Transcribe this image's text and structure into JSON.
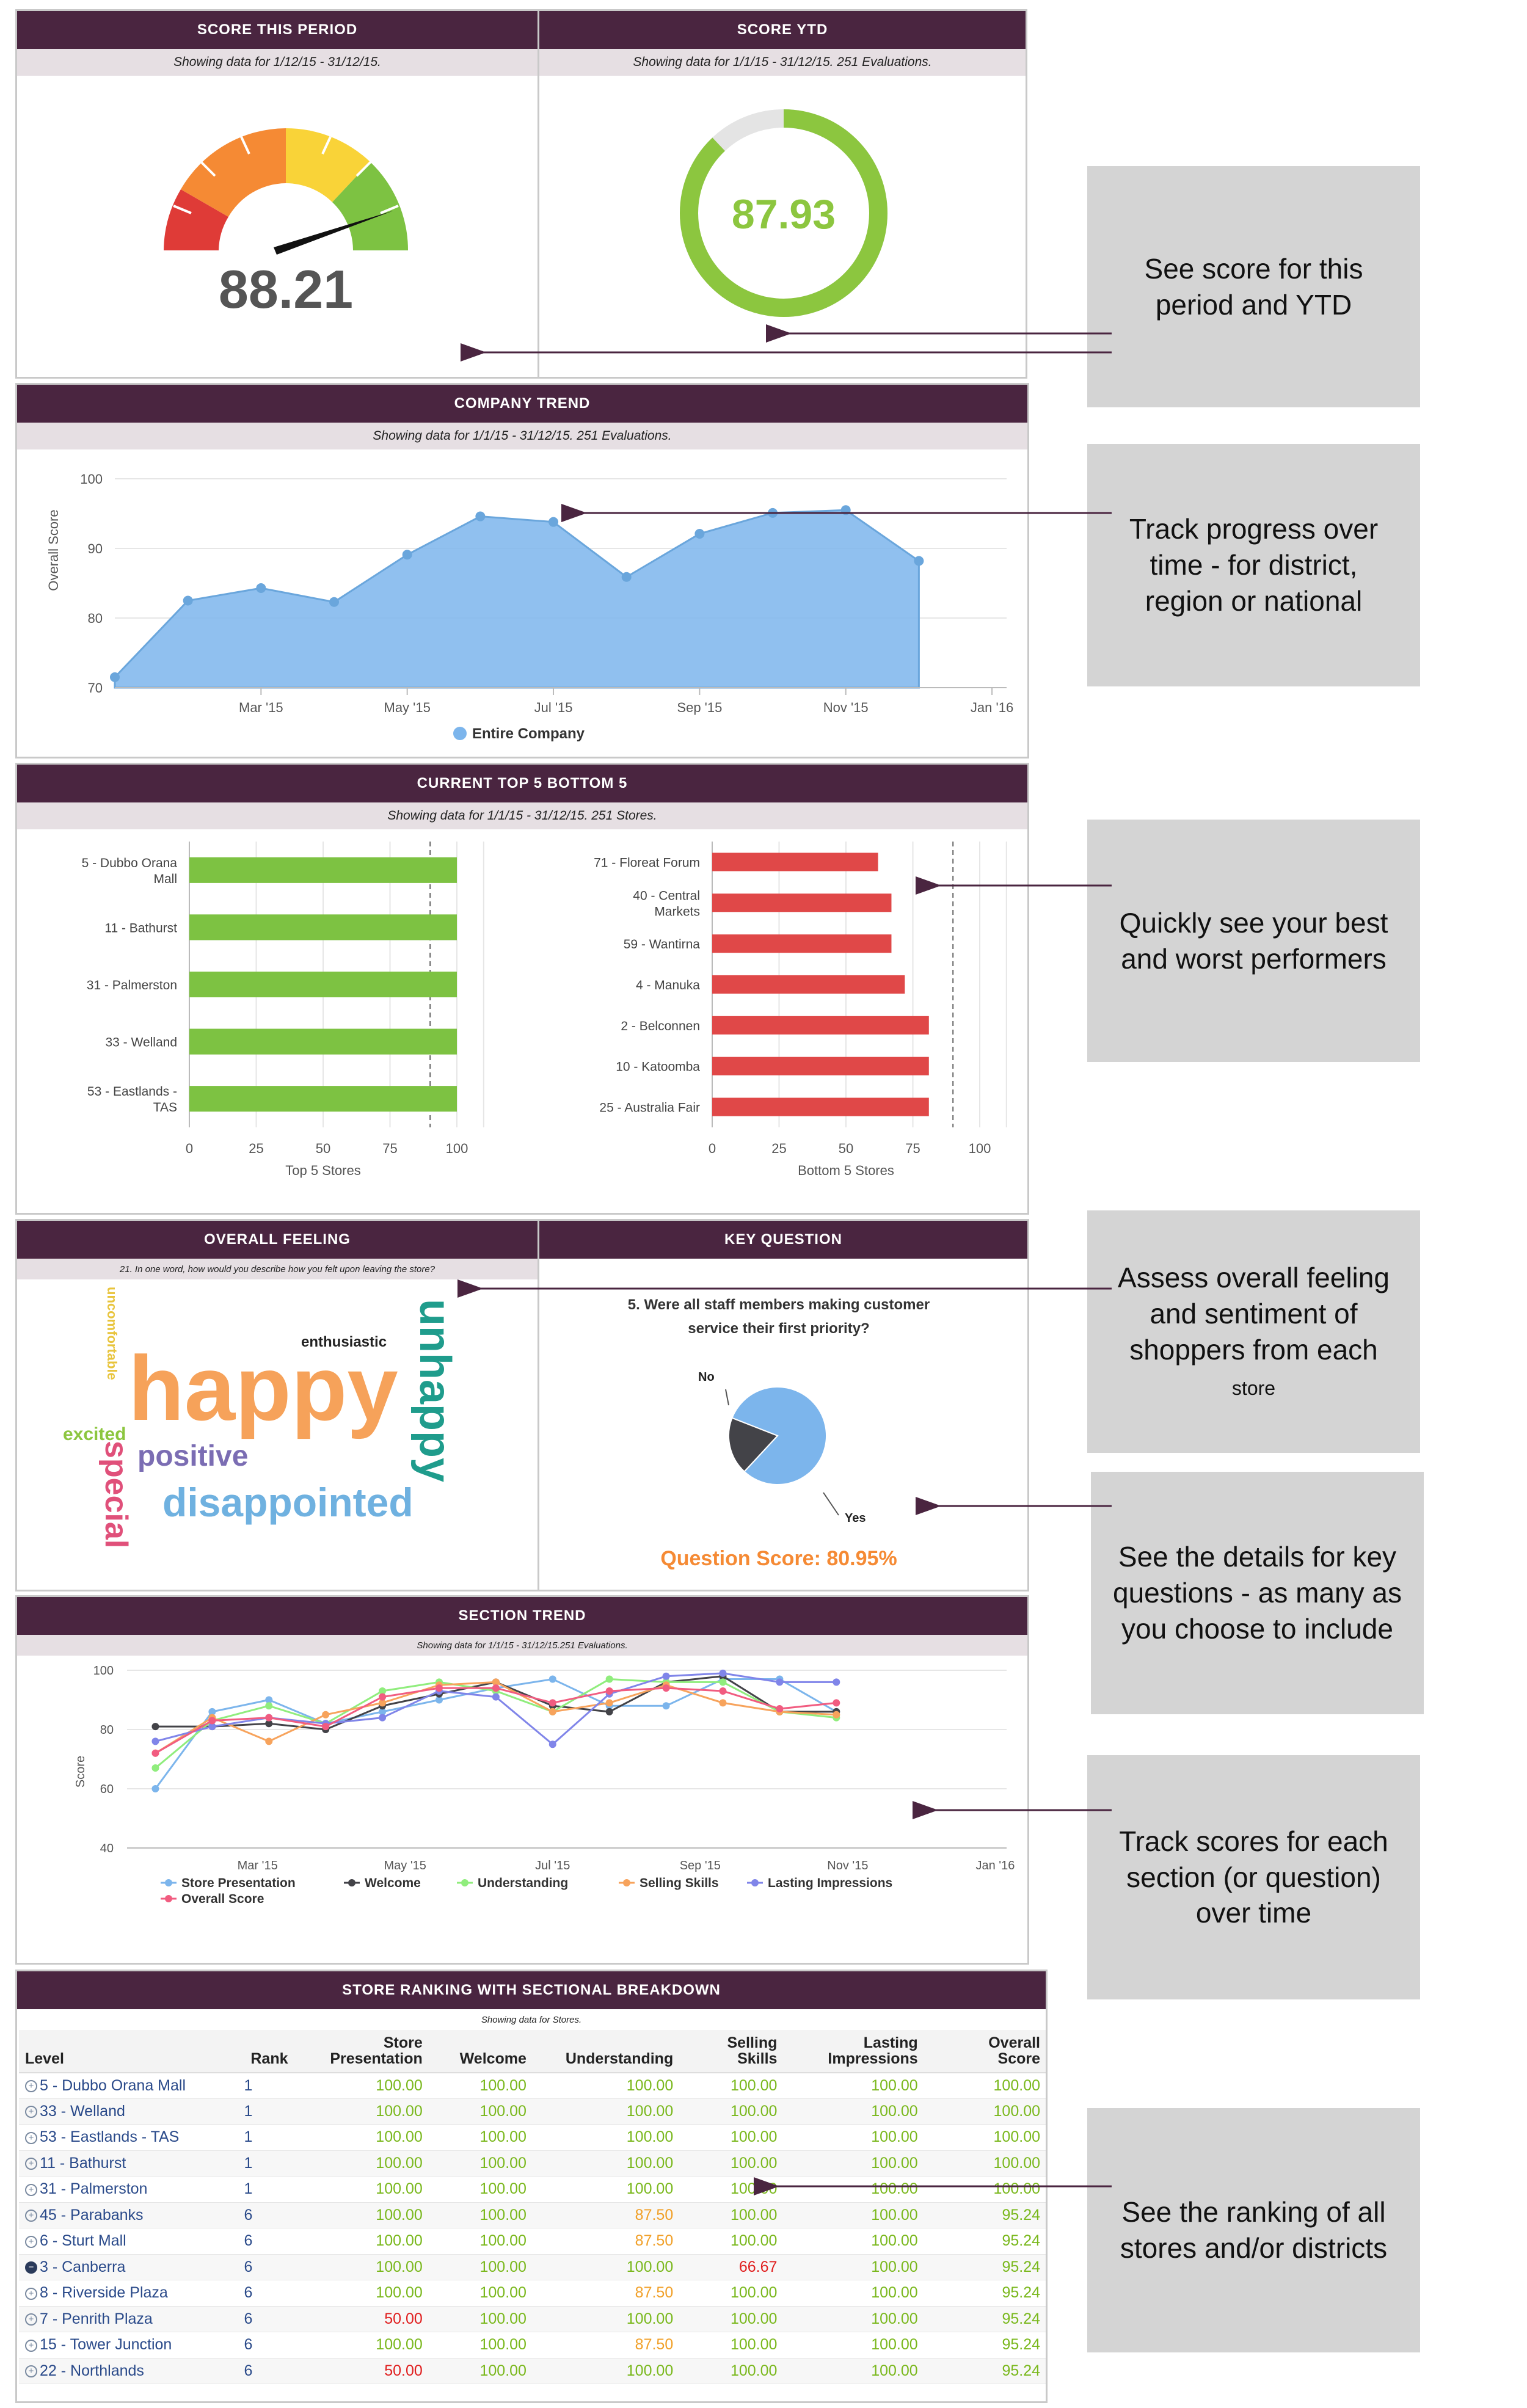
{
  "score_period": {
    "title": "SCORE THIS PERIOD",
    "subtitle": "Showing data for 1/12/15 - 31/12/15.",
    "value": "88.21",
    "gauge_value": 88.21
  },
  "score_ytd": {
    "title": "SCORE YTD",
    "subtitle": "Showing data for 1/1/15 - 31/12/15. 251 Evaluations.",
    "value": "87.93",
    "ring_fraction": 0.8793
  },
  "company_trend": {
    "title": "COMPANY TREND",
    "subtitle": "Showing data for 1/1/15 - 31/12/15. 251 Evaluations.",
    "legend": "Entire Company",
    "chart_data": {
      "type": "area",
      "ylabel": "Overall Score",
      "ylim": [
        70,
        100
      ],
      "yticks": [
        "100",
        "90",
        "80",
        "70"
      ],
      "xticks": [
        "Mar '15",
        "May '15",
        "Jul '15",
        "Sep '15",
        "Nov '15",
        "Jan '16"
      ],
      "x": [
        0,
        1,
        2,
        3,
        4,
        5,
        6,
        7,
        8,
        9,
        10,
        11
      ],
      "values": [
        71.5,
        82.5,
        84.3,
        82.3,
        89.1,
        94.6,
        93.8,
        85.9,
        92.1,
        95.1,
        95.5,
        88.2
      ],
      "color": "#7cb5ec"
    }
  },
  "top_bottom": {
    "title": "CURRENT TOP 5 BOTTOM 5",
    "subtitle": "Showing data for 1/1/15 - 31/12/15. 251 Stores.",
    "top": {
      "xlabel": "Top 5 Stores",
      "ticks": [
        "0",
        "25",
        "50",
        "75",
        "100"
      ],
      "categories": [
        [
          "5 - Dubbo Orana",
          "Mall"
        ],
        [
          "11 - Bathurst"
        ],
        [
          "31 - Palmerston"
        ],
        [
          "33 - Welland"
        ],
        [
          "53 - Eastlands -",
          "TAS"
        ]
      ],
      "values": [
        100,
        100,
        100,
        100,
        100
      ],
      "color": "#7dc242"
    },
    "bottom": {
      "xlabel": "Bottom 5 Stores",
      "ticks": [
        "0",
        "25",
        "50",
        "75",
        "100"
      ],
      "categories": [
        [
          "71 - Floreat Forum"
        ],
        [
          "40 - Central",
          "Markets"
        ],
        [
          "59 - Wantirna"
        ],
        [
          "4 - Manuka"
        ],
        [
          "2 - Belconnen"
        ],
        [
          "10 - Katoomba"
        ],
        [
          "25 - Australia Fair"
        ]
      ],
      "values": [
        62,
        67,
        67,
        72,
        81,
        81,
        81
      ],
      "color": "#e04848"
    }
  },
  "overall_feeling": {
    "title": "OVERALL FEELING",
    "subtitle": "21. In one word, how would you describe how you felt upon leaving the store?",
    "words": [
      {
        "text": "happy",
        "color": "#f6a25a"
      },
      {
        "text": "unhappy",
        "color": "#1f9c8c"
      },
      {
        "text": "disappointed",
        "color": "#6fb1e0"
      },
      {
        "text": "positive",
        "color": "#7b6db3"
      },
      {
        "text": "special",
        "color": "#e0507a"
      },
      {
        "text": "excited",
        "color": "#8cc63f"
      },
      {
        "text": "enthusiastic",
        "color": "#222222"
      },
      {
        "text": "uncomfortable",
        "color": "#e8c43c"
      }
    ]
  },
  "key_question": {
    "title": "KEY QUESTION",
    "question_line1": "5. Were all staff members making customer",
    "question_line2": "service their first priority?",
    "chart_data": {
      "type": "pie",
      "labels": [
        "Yes",
        "No"
      ],
      "values": [
        80.95,
        19.05
      ],
      "colors": [
        "#7cb5ec",
        "#434348"
      ]
    },
    "label_no": "No",
    "label_yes": "Yes",
    "score": "Question Score: 80.95%"
  },
  "section_trend": {
    "title": "SECTION TREND",
    "subtitle": "Showing data for 1/1/15 - 31/12/15.251 Evaluations.",
    "chart_data": {
      "type": "line",
      "ylabel": "Score",
      "ylim": [
        40,
        100
      ],
      "yticks": [
        "100",
        "80",
        "60",
        "40"
      ],
      "xticks": [
        "Mar '15",
        "May '15",
        "Jul '15",
        "Sep '15",
        "Nov '15",
        "Jan '16"
      ],
      "series": [
        {
          "name": "Store Presentation",
          "color": "#7cb5ec",
          "values": [
            60,
            86,
            90,
            82,
            86,
            90,
            94,
            97,
            88,
            88,
            97,
            97,
            86
          ]
        },
        {
          "name": "Welcome",
          "color": "#434348",
          "values": [
            81,
            81,
            82,
            80,
            88,
            92,
            96,
            88,
            86,
            96,
            98,
            86,
            86
          ]
        },
        {
          "name": "Understanding",
          "color": "#90ed7d",
          "values": [
            67,
            83,
            88,
            82,
            93,
            96,
            93,
            86,
            97,
            96,
            96,
            86,
            84
          ]
        },
        {
          "name": "Selling Skills",
          "color": "#f7a35c",
          "values": [
            72,
            84,
            76,
            85,
            89,
            95,
            96,
            86,
            89,
            95,
            89,
            86,
            85
          ]
        },
        {
          "name": "Lasting Impressions",
          "color": "#8085e9",
          "values": [
            76,
            81,
            84,
            82,
            84,
            93,
            91,
            75,
            92,
            98,
            99,
            96,
            96
          ]
        },
        {
          "name": "Overall Score",
          "color": "#f15c80",
          "values": [
            72,
            83,
            84,
            81,
            91,
            94,
            94,
            89,
            93,
            94,
            93,
            87,
            89
          ]
        }
      ]
    }
  },
  "ranking": {
    "title": "STORE RANKING WITH SECTIONAL BREAKDOWN",
    "subtitle": "Showing data for Stores.",
    "headers": {
      "level": "Level",
      "rank": "Rank",
      "sp1": "Store",
      "sp2": "Presentation",
      "welcome": "Welcome",
      "understanding": "Understanding",
      "ss1": "Selling",
      "ss2": "Skills",
      "li1": "Lasting",
      "li2": "Impressions",
      "os1": "Overall",
      "os2": "Score"
    },
    "rows": [
      {
        "level": "5 - Dubbo Orana Mall",
        "rank": "1",
        "sp": "100.00",
        "w": "100.00",
        "u": "100.00",
        "ss": "100.00",
        "li": "100.00",
        "os": "100.00"
      },
      {
        "level": "33 - Welland",
        "rank": "1",
        "sp": "100.00",
        "w": "100.00",
        "u": "100.00",
        "ss": "100.00",
        "li": "100.00",
        "os": "100.00"
      },
      {
        "level": "53 - Eastlands - TAS",
        "rank": "1",
        "sp": "100.00",
        "w": "100.00",
        "u": "100.00",
        "ss": "100.00",
        "li": "100.00",
        "os": "100.00"
      },
      {
        "level": "11 - Bathurst",
        "rank": "1",
        "sp": "100.00",
        "w": "100.00",
        "u": "100.00",
        "ss": "100.00",
        "li": "100.00",
        "os": "100.00"
      },
      {
        "level": "31 - Palmerston",
        "rank": "1",
        "sp": "100.00",
        "w": "100.00",
        "u": "100.00",
        "ss": "100.00",
        "li": "100.00",
        "os": "100.00"
      },
      {
        "level": "45 - Parabanks",
        "rank": "6",
        "sp": "100.00",
        "w": "100.00",
        "u": "87.50",
        "ss": "100.00",
        "li": "100.00",
        "os": "95.24"
      },
      {
        "level": "6 - Sturt Mall",
        "rank": "6",
        "sp": "100.00",
        "w": "100.00",
        "u": "87.50",
        "ss": "100.00",
        "li": "100.00",
        "os": "95.24"
      },
      {
        "level": "3 - Canberra",
        "rank": "6",
        "sp": "100.00",
        "w": "100.00",
        "u": "100.00",
        "ss": "66.67",
        "li": "100.00",
        "os": "95.24"
      },
      {
        "level": "8 - Riverside Plaza",
        "rank": "6",
        "sp": "100.00",
        "w": "100.00",
        "u": "87.50",
        "ss": "100.00",
        "li": "100.00",
        "os": "95.24"
      },
      {
        "level": "7 - Penrith Plaza",
        "rank": "6",
        "sp": "50.00",
        "w": "100.00",
        "u": "100.00",
        "ss": "100.00",
        "li": "100.00",
        "os": "95.24"
      },
      {
        "level": "15 - Tower Junction",
        "rank": "6",
        "sp": "100.00",
        "w": "100.00",
        "u": "87.50",
        "ss": "100.00",
        "li": "100.00",
        "os": "95.24"
      },
      {
        "level": "22 - Northlands",
        "rank": "6",
        "sp": "50.00",
        "w": "100.00",
        "u": "100.00",
        "ss": "100.00",
        "li": "100.00",
        "os": "95.24"
      }
    ]
  },
  "callouts": {
    "c1": [
      "See score for this",
      "period and YTD"
    ],
    "c2": [
      "Track progress over",
      "time - for district,",
      "region or national"
    ],
    "c3": [
      "Quickly see your best",
      "and worst performers"
    ],
    "c4a": "Assess overall feeling",
    "c4b": "and sentiment of",
    "c4c": "shoppers from each",
    "c4d": "store",
    "c5": [
      "See the details for key",
      "questions - as many as",
      "you choose to include"
    ],
    "c6": [
      "Track scores for each",
      "section (or question)",
      "over time"
    ],
    "c7": [
      "See the ranking of all",
      "stores and/or districts"
    ]
  }
}
